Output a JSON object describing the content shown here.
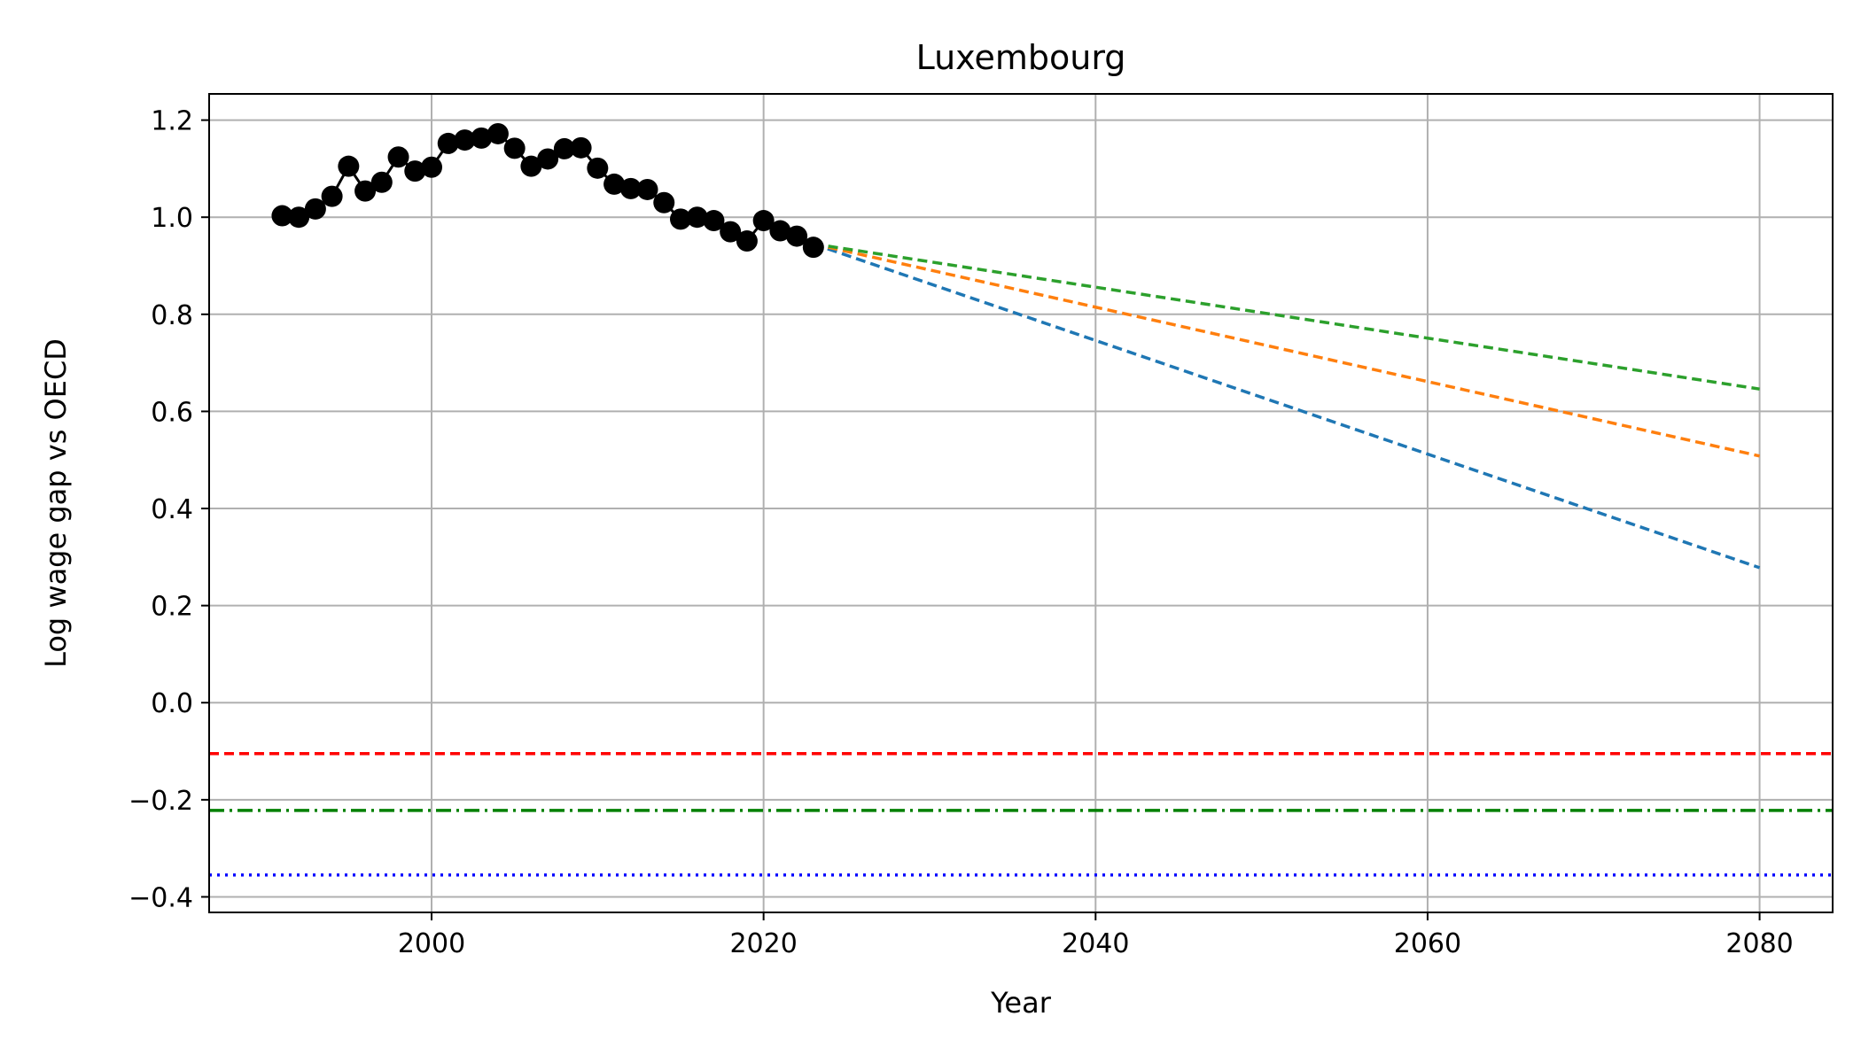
{
  "chart_data": {
    "type": "line",
    "title": "Luxembourg",
    "xlabel": "Year",
    "ylabel": "Log wage gap vs OECD",
    "xlim": [
      1986.6,
      2084.4
    ],
    "ylim": [
      -0.432,
      1.254
    ],
    "x_ticks": [
      2000,
      2020,
      2040,
      2060,
      2080
    ],
    "x_tick_labels": [
      "2000",
      "2020",
      "2040",
      "2060",
      "2080"
    ],
    "y_ticks": [
      -0.4,
      -0.2,
      0.0,
      0.2,
      0.4,
      0.6,
      0.8,
      1.0,
      1.2
    ],
    "y_tick_labels": [
      "−0.4",
      "−0.2",
      "0.0",
      "0.2",
      "0.4",
      "0.6",
      "0.8",
      "1.0",
      "1.2"
    ],
    "grid": true,
    "legend": "none",
    "series": [
      {
        "style": "solid-marker",
        "color": "#000000",
        "x": [
          1991,
          1992,
          1993,
          1994,
          1995,
          1996,
          1997,
          1998,
          1999,
          2000,
          2001,
          2002,
          2003,
          2004,
          2005,
          2006,
          2007,
          2008,
          2009,
          2010,
          2011,
          2012,
          2013,
          2014,
          2015,
          2016,
          2017,
          2018,
          2019,
          2020,
          2021,
          2022,
          2023
        ],
        "y": [
          1.003,
          1.0,
          1.017,
          1.043,
          1.105,
          1.054,
          1.072,
          1.124,
          1.095,
          1.103,
          1.152,
          1.159,
          1.163,
          1.172,
          1.142,
          1.105,
          1.12,
          1.141,
          1.143,
          1.101,
          1.068,
          1.059,
          1.057,
          1.03,
          0.996,
          1.0,
          0.993,
          0.97,
          0.951,
          0.993,
          0.972,
          0.961,
          0.938
        ]
      },
      {
        "style": "dashed",
        "color": "#1f77b4",
        "x": [
          2023,
          2080
        ],
        "y": [
          0.945,
          0.278
        ]
      },
      {
        "style": "dashed",
        "color": "#ff7f0e",
        "x": [
          2023,
          2080
        ],
        "y": [
          0.945,
          0.508
        ]
      },
      {
        "style": "dashed",
        "color": "#2ca02c",
        "x": [
          2023,
          2080
        ],
        "y": [
          0.945,
          0.646
        ]
      }
    ],
    "hlines": [
      {
        "y": -0.105,
        "color": "#ff0000",
        "style": "dashed"
      },
      {
        "y": -0.222,
        "color": "#008000",
        "style": "dashdot"
      },
      {
        "y": -0.355,
        "color": "#0000ff",
        "style": "dotted"
      }
    ]
  }
}
